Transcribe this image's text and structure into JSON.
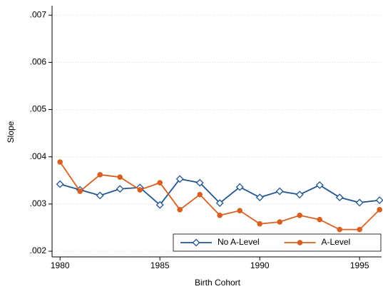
{
  "chart_data": {
    "type": "line",
    "x_label": "Birth Cohort",
    "y_label": "Slope",
    "x": [
      1980,
      1981,
      1982,
      1983,
      1984,
      1985,
      1986,
      1987,
      1988,
      1989,
      1990,
      1991,
      1992,
      1993,
      1994,
      1995,
      1996
    ],
    "series": [
      {
        "name": "No A-Level",
        "color": "#1f5591",
        "marker": "diamond-hollow",
        "values": [
          0.00342,
          0.0033,
          0.00318,
          0.00332,
          0.00335,
          0.00298,
          0.00353,
          0.00345,
          0.00302,
          0.00336,
          0.00314,
          0.00327,
          0.0032,
          0.0034,
          0.00314,
          0.00303,
          0.00308
        ]
      },
      {
        "name": "A-Level",
        "color": "#d95f20",
        "marker": "circle",
        "values": [
          0.00389,
          0.00327,
          0.00362,
          0.00357,
          0.0033,
          0.00345,
          0.00288,
          0.0032,
          0.00276,
          0.00286,
          0.00258,
          0.00262,
          0.00276,
          0.00267,
          0.00246,
          0.00246,
          0.00288
        ]
      }
    ],
    "xlim": [
      1979.6,
      1996.1
    ],
    "xticks": [
      1980,
      1985,
      1990,
      1995
    ],
    "ylim": [
      0.00188,
      0.0072
    ],
    "yticks": [
      {
        "value": 0.002,
        "label": ".002"
      },
      {
        "value": 0.003,
        "label": ".003"
      },
      {
        "value": 0.004,
        "label": ".004"
      },
      {
        "value": 0.005,
        "label": ".005"
      },
      {
        "value": 0.006,
        "label": ".006"
      },
      {
        "value": 0.007,
        "label": ".007"
      }
    ],
    "grid": true,
    "legend_position": "bottom-right"
  }
}
